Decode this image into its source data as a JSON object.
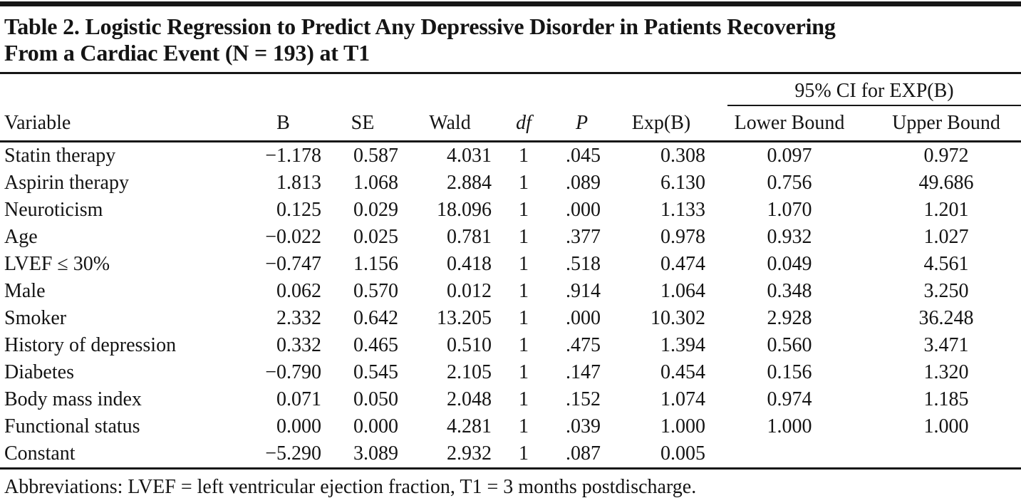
{
  "page": {
    "title_line1": "Table 2. Logistic Regression to Predict Any Depressive Disorder in Patients Recovering",
    "title_line2": "From a Cardiac Event (N = 193) at T1"
  },
  "colors": {
    "background": "#ffffff",
    "text": "#141414",
    "rule": "#161616"
  },
  "table": {
    "ci_span_header": "95% CI for EXP(B)",
    "columns": [
      "Variable",
      "B",
      "SE",
      "Wald",
      "df",
      "P",
      "Exp(B)",
      "Lower Bound",
      "Upper Bound"
    ],
    "rows": [
      {
        "variable": "Statin therapy",
        "b": "−1.178",
        "se": "0.587",
        "wald": "4.031",
        "df": "1",
        "p": ".045",
        "exp_b": "0.308",
        "lower": "0.097",
        "upper": "0.972"
      },
      {
        "variable": "Aspirin therapy",
        "b": "1.813",
        "se": "1.068",
        "wald": "2.884",
        "df": "1",
        "p": ".089",
        "exp_b": "6.130",
        "lower": "0.756",
        "upper": "49.686"
      },
      {
        "variable": "Neuroticism",
        "b": "0.125",
        "se": "0.029",
        "wald": "18.096",
        "df": "1",
        "p": ".000",
        "exp_b": "1.133",
        "lower": "1.070",
        "upper": "1.201"
      },
      {
        "variable": "Age",
        "b": "−0.022",
        "se": "0.025",
        "wald": "0.781",
        "df": "1",
        "p": ".377",
        "exp_b": "0.978",
        "lower": "0.932",
        "upper": "1.027"
      },
      {
        "variable": "LVEF ≤ 30%",
        "b": "−0.747",
        "se": "1.156",
        "wald": "0.418",
        "df": "1",
        "p": ".518",
        "exp_b": "0.474",
        "lower": "0.049",
        "upper": "4.561"
      },
      {
        "variable": "Male",
        "b": "0.062",
        "se": "0.570",
        "wald": "0.012",
        "df": "1",
        "p": ".914",
        "exp_b": "1.064",
        "lower": "0.348",
        "upper": "3.250"
      },
      {
        "variable": "Smoker",
        "b": "2.332",
        "se": "0.642",
        "wald": "13.205",
        "df": "1",
        "p": ".000",
        "exp_b": "10.302",
        "lower": "2.928",
        "upper": "36.248"
      },
      {
        "variable": "History of depression",
        "b": "0.332",
        "se": "0.465",
        "wald": "0.510",
        "df": "1",
        "p": ".475",
        "exp_b": "1.394",
        "lower": "0.560",
        "upper": "3.471"
      },
      {
        "variable": "Diabetes",
        "b": "−0.790",
        "se": "0.545",
        "wald": "2.105",
        "df": "1",
        "p": ".147",
        "exp_b": "0.454",
        "lower": "0.156",
        "upper": "1.320"
      },
      {
        "variable": "Body mass index",
        "b": "0.071",
        "se": "0.050",
        "wald": "2.048",
        "df": "1",
        "p": ".152",
        "exp_b": "1.074",
        "lower": "0.974",
        "upper": "1.185"
      },
      {
        "variable": "Functional status",
        "b": "0.000",
        "se": "0.000",
        "wald": "4.281",
        "df": "1",
        "p": ".039",
        "exp_b": "1.000",
        "lower": "1.000",
        "upper": "1.000"
      },
      {
        "variable": "Constant",
        "b": "−5.290",
        "se": "3.089",
        "wald": "2.932",
        "df": "1",
        "p": ".087",
        "exp_b": "0.005",
        "lower": "",
        "upper": ""
      }
    ],
    "footnote": "Abbreviations: LVEF = left ventricular ejection fraction, T1 = 3 months postdischarge."
  }
}
